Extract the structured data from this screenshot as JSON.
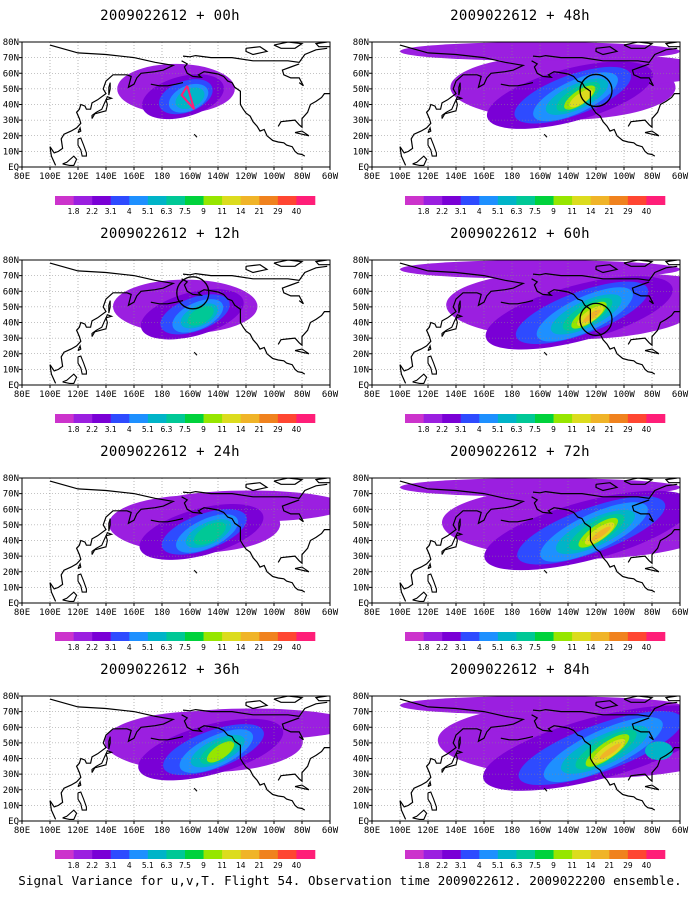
{
  "caption": "Signal Variance for u,v,T. Flight 54. Observation time 2009022612. 2009022200 ensemble.",
  "x_tick_labels": [
    "80E",
    "100E",
    "120E",
    "140E",
    "160E",
    "180",
    "160W",
    "140W",
    "120W",
    "100W",
    "80W",
    "60W"
  ],
  "y_tick_labels": [
    "EQ",
    "10N",
    "20N",
    "30N",
    "40N",
    "50N",
    "60N",
    "70N",
    "80N"
  ],
  "colorbar": {
    "labels": [
      "1.8",
      "2.2",
      "3.1",
      "4",
      "5.1",
      "6.3",
      "7.5",
      "9",
      "11",
      "14",
      "21",
      "29",
      "40"
    ],
    "colors": [
      "#cc33cc",
      "#9b1fe0",
      "#7a00d6",
      "#2e4bff",
      "#1e90ff",
      "#00b4c8",
      "#00c896",
      "#00d23c",
      "#96e600",
      "#dcdc1e",
      "#f0b428",
      "#f0821e",
      "#ff4632",
      "#ff1e78"
    ]
  },
  "panels": [
    {
      "title": "2009022612 + 00h",
      "lead": 0,
      "circle": null,
      "flight_track": true
    },
    {
      "title": "2009022612 + 48h",
      "lead": 48,
      "circle": [
        -120,
        49
      ],
      "flight_track": false
    },
    {
      "title": "2009022612 + 12h",
      "lead": 12,
      "circle": [
        -158,
        59
      ],
      "flight_track": false
    },
    {
      "title": "2009022612 + 60h",
      "lead": 60,
      "circle": [
        -120,
        42
      ],
      "flight_track": false
    },
    {
      "title": "2009022612 + 24h",
      "lead": 24,
      "circle": null,
      "flight_track": false
    },
    {
      "title": "2009022612 + 72h",
      "lead": 72,
      "circle": null,
      "flight_track": false
    },
    {
      "title": "2009022612 + 36h",
      "lead": 36,
      "circle": null,
      "flight_track": false
    },
    {
      "title": "2009022612 + 84h",
      "lead": 84,
      "circle": null,
      "flight_track": false
    }
  ]
}
